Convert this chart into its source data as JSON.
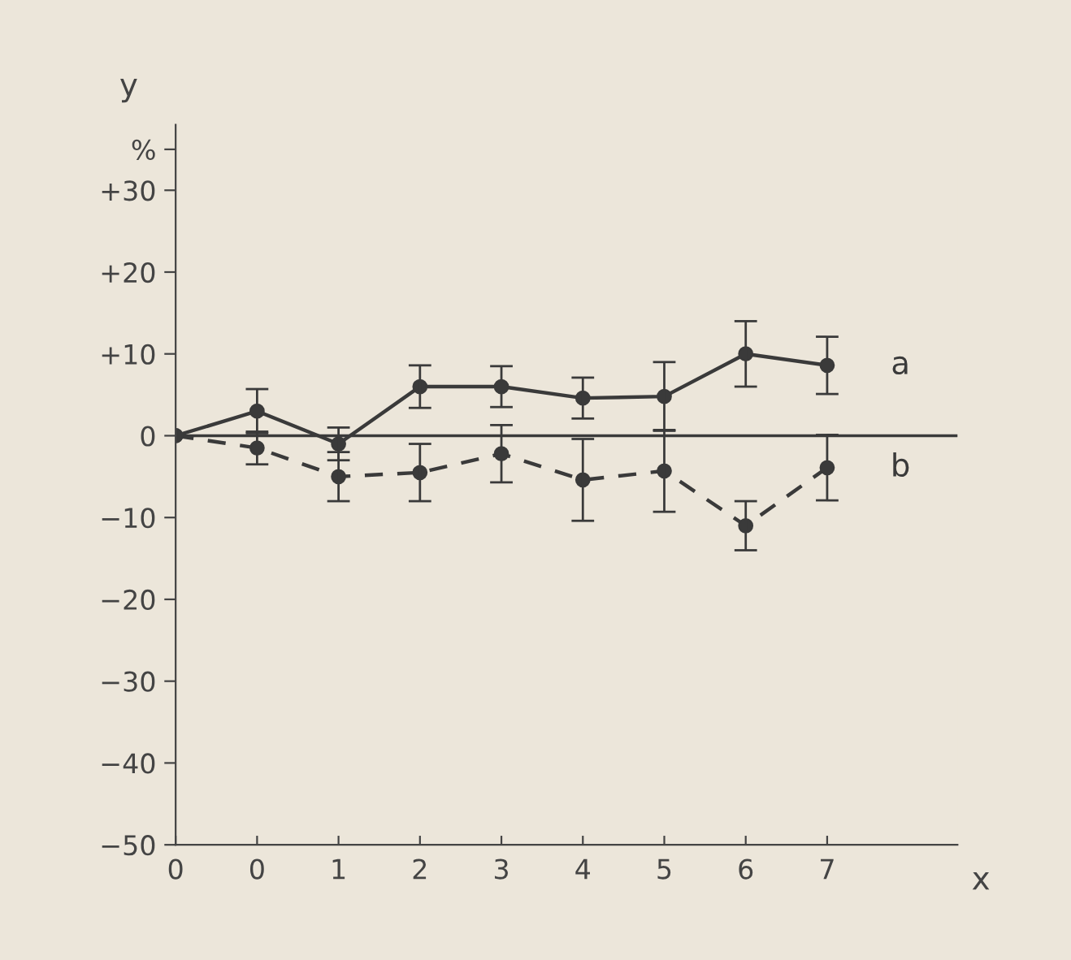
{
  "chart_data": {
    "type": "line",
    "xlabel": "x",
    "ylabel": "y",
    "categories": [
      "0",
      "0",
      "1",
      "2",
      "3",
      "4",
      "5",
      "6",
      "7"
    ],
    "series": [
      {
        "name": "a",
        "color": "#3a3a3a",
        "line_style": "solid",
        "values": [
          0,
          3,
          -1,
          6,
          6,
          4.6,
          4.8,
          10,
          8.6
        ],
        "errors": [
          null,
          2.7,
          2,
          2.6,
          2.5,
          2.5,
          4.2,
          4,
          3.5
        ]
      },
      {
        "name": "b",
        "color": "#3a3a3a",
        "line_style": "dashed",
        "values": [
          0,
          -1.5,
          -5,
          -4.5,
          -2.2,
          -5.4,
          -4.3,
          -11,
          -3.9
        ],
        "errors": [
          null,
          2,
          3,
          3.5,
          3.5,
          5,
          5,
          3,
          4
        ]
      }
    ],
    "ylim": [
      -50,
      38
    ],
    "yticks": [
      {
        "value": -50,
        "label": "−50"
      },
      {
        "value": -40,
        "label": "−40"
      },
      {
        "value": -30,
        "label": "−30"
      },
      {
        "value": -20,
        "label": "−20"
      },
      {
        "value": -10,
        "label": "−10"
      },
      0,
      {
        "value": 10,
        "label": "+10"
      },
      {
        "value": 20,
        "label": "+20"
      },
      {
        "value": 30,
        "label": "+30"
      },
      {
        "value": 35,
        "label": "%"
      }
    ],
    "ref_lines": [
      {
        "axis": "y",
        "value": 0,
        "color": "#3a3a3a",
        "line_style": "solid"
      }
    ],
    "marker": "circle",
    "grid": false,
    "legend": false
  }
}
